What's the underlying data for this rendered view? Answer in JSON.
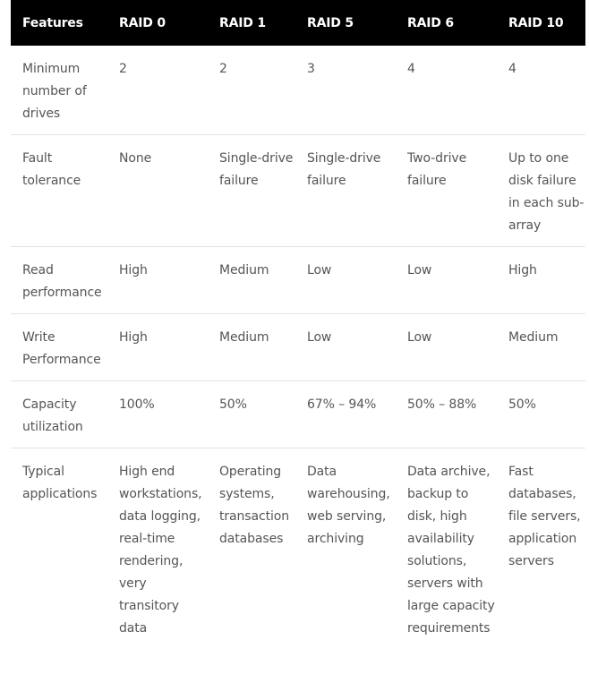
{
  "table": {
    "headers": [
      "Features",
      "RAID 0",
      "RAID 1",
      "RAID 5",
      "RAID 6",
      "RAID 10"
    ],
    "rows": [
      [
        "Minimum number of drives",
        "2",
        "2",
        "3",
        "4",
        "4"
      ],
      [
        "Fault tolerance",
        "None",
        "Single-drive failure",
        "Single-drive failure",
        "Two-drive failure",
        "Up to one disk failure in each sub-array"
      ],
      [
        "Read performance",
        "High",
        "Medium",
        "Low",
        "Low",
        "High"
      ],
      [
        "Write Performance",
        "High",
        "Medium",
        "Low",
        "Low",
        "Medium"
      ],
      [
        "Capacity utilization",
        "100%",
        "50%",
        "67% – 94%",
        "50% – 88%",
        "50%"
      ],
      [
        "Typical applications",
        "High end workstations, data logging, real-time rendering, very transitory data",
        "Operating systems, transaction databases",
        "Data warehousing, web serving, archiving",
        "Data archive, backup to disk, high availability solutions, servers with large capacity requirements",
        "Fast databases, file servers, application servers"
      ]
    ]
  }
}
